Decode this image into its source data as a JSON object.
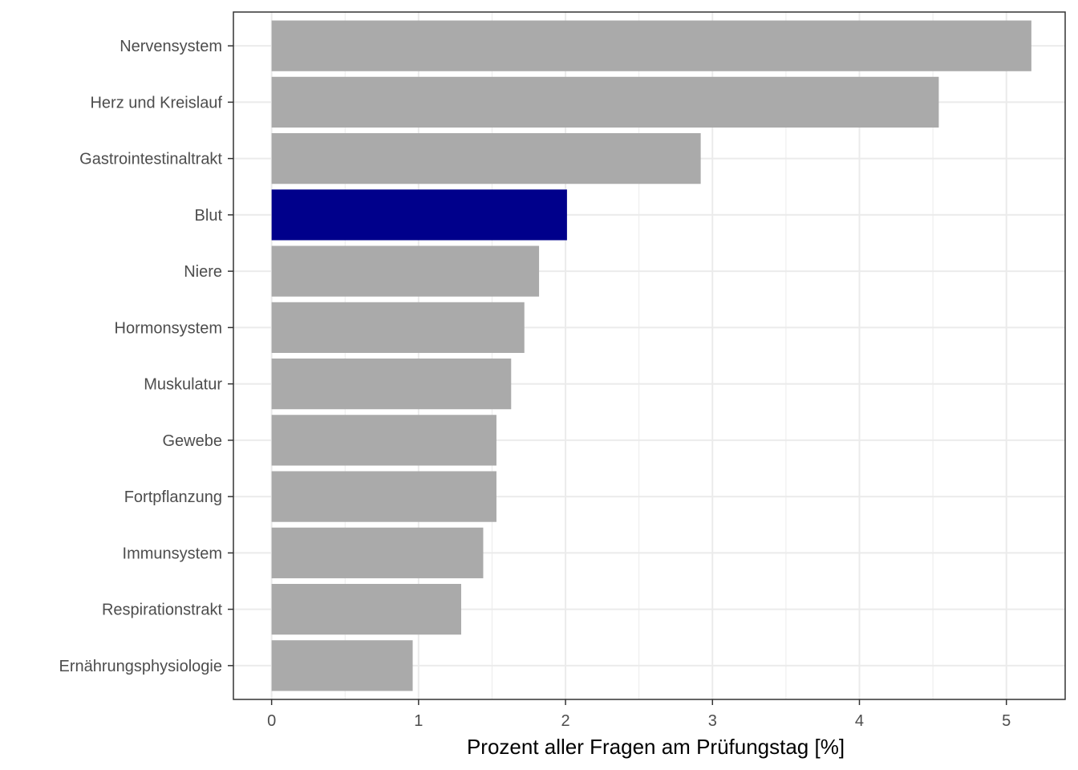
{
  "chart_data": {
    "type": "bar",
    "orientation": "horizontal",
    "categories": [
      "Nervensystem",
      "Herz und Kreislauf",
      "Gastrointestinaltrakt",
      "Blut",
      "Niere",
      "Hormonsystem",
      "Muskulatur",
      "Gewebe",
      "Fortpflanzung",
      "Immunsystem",
      "Respirationstrakt",
      "Ernährungsphysiologie"
    ],
    "values": [
      5.17,
      4.54,
      2.92,
      2.01,
      1.82,
      1.72,
      1.63,
      1.53,
      1.53,
      1.44,
      1.29,
      0.96
    ],
    "highlight": "Blut",
    "colors": {
      "default": "#aaaaaa",
      "highlight": "#00008b",
      "grid": "#ebebeb",
      "panel_border": "#333333"
    },
    "title": "",
    "xlabel": "Prozent aller Fragen am Prüfungstag [%]",
    "ylabel": "",
    "xlim": [
      -0.26,
      5.4
    ],
    "xticks": [
      0,
      1,
      2,
      3,
      4,
      5
    ],
    "grid": true,
    "legend": "none"
  }
}
